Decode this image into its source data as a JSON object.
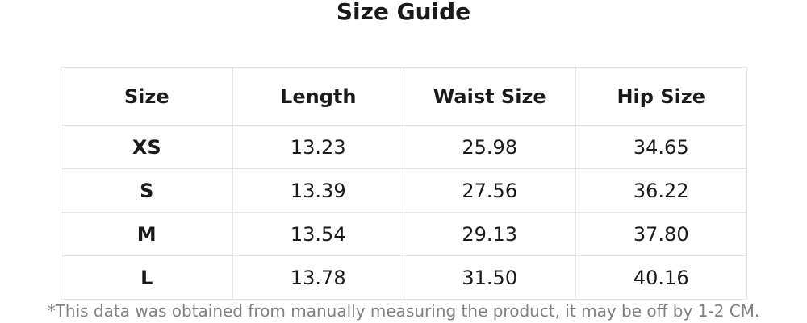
{
  "title": "Size Guide",
  "headers": [
    "Size",
    "Length",
    "Waist Size",
    "Hip Size"
  ],
  "rows": [
    [
      "XS",
      "13.23",
      "25.98",
      "34.65"
    ],
    [
      "S",
      "13.39",
      "27.56",
      "36.22"
    ],
    [
      "M",
      "13.54",
      "29.13",
      "37.80"
    ],
    [
      "L",
      "13.78",
      "31.50",
      "40.16"
    ]
  ],
  "note": "*This data was obtained from manually measuring the product, it may be off by 1-2 CM."
}
